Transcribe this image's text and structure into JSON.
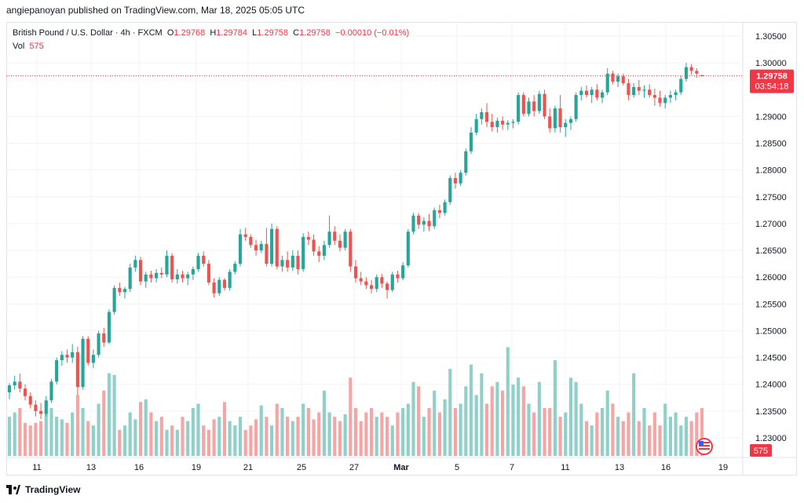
{
  "publisher_line": "angiepanoyan published on TradingView.com, Mar 18, 2025 05:05 UTC",
  "legend": {
    "symbol": "British Pound / U.S. Dollar · 4h · FXCM",
    "open_label": "O",
    "open": "1.29768",
    "high_label": "H",
    "high": "1.29784",
    "low_label": "L",
    "low": "1.29758",
    "close_label": "C",
    "close": "1.29758",
    "change": "−0.00010 (−0.01%)",
    "vol_label": "Vol",
    "vol": "575"
  },
  "price_badge": {
    "price": "1.29758",
    "countdown": "03:54:18"
  },
  "volume_badge": "575",
  "footer_brand": "TradingView",
  "colors": {
    "up": "#26a69a",
    "down": "#ef5350",
    "up_vol": "#8fd0c9",
    "down_vol": "#f4a5a4",
    "badge": "#f23645"
  },
  "chart_data": {
    "type": "candlestick",
    "y_ticks": [
      "1.30500",
      "1.30000",
      "1.29000",
      "1.28500",
      "1.28000",
      "1.27500",
      "1.27000",
      "1.26500",
      "1.26000",
      "1.25500",
      "1.25000",
      "1.24500",
      "1.24000",
      "1.23500",
      "1.23000"
    ],
    "x_ticks": [
      "11",
      "13",
      "16",
      "19",
      "21",
      "25",
      "27",
      "Mar",
      "5",
      "7",
      "11",
      "13",
      "16",
      "19"
    ],
    "ylim": [
      1.2265,
      1.3075
    ],
    "last_price": 1.29758,
    "candles": [
      [
        1.2385,
        1.2402,
        1.2372,
        1.2398
      ],
      [
        1.2398,
        1.2416,
        1.239,
        1.2405
      ],
      [
        1.2405,
        1.242,
        1.2385,
        1.2392
      ],
      [
        1.2392,
        1.24,
        1.237,
        1.2378
      ],
      [
        1.2378,
        1.2385,
        1.2355,
        1.2362
      ],
      [
        1.2362,
        1.237,
        1.234,
        1.235
      ],
      [
        1.235,
        1.2365,
        1.2335,
        1.2345
      ],
      [
        1.2345,
        1.2378,
        1.234,
        1.237
      ],
      [
        1.237,
        1.241,
        1.2365,
        1.2405
      ],
      [
        1.2405,
        1.245,
        1.24,
        1.2445
      ],
      [
        1.2445,
        1.2462,
        1.2435,
        1.2455
      ],
      [
        1.2455,
        1.2465,
        1.244,
        1.245
      ],
      [
        1.245,
        1.2475,
        1.244,
        1.246
      ],
      [
        1.246,
        1.247,
        1.238,
        1.2395
      ],
      [
        1.2395,
        1.249,
        1.239,
        1.2485
      ],
      [
        1.2485,
        1.249,
        1.2435,
        1.244
      ],
      [
        1.244,
        1.2465,
        1.243,
        1.2455
      ],
      [
        1.2455,
        1.25,
        1.245,
        1.2495
      ],
      [
        1.2495,
        1.2505,
        1.247,
        1.2478
      ],
      [
        1.2478,
        1.254,
        1.2475,
        1.2535
      ],
      [
        1.2535,
        1.2585,
        1.253,
        1.258
      ],
      [
        1.258,
        1.259,
        1.2565,
        1.2572
      ],
      [
        1.2572,
        1.2582,
        1.256,
        1.2578
      ],
      [
        1.2578,
        1.2625,
        1.2572,
        1.2618
      ],
      [
        1.2618,
        1.264,
        1.261,
        1.2632
      ],
      [
        1.2632,
        1.2638,
        1.2585,
        1.2592
      ],
      [
        1.2592,
        1.261,
        1.258,
        1.2605
      ],
      [
        1.2605,
        1.2612,
        1.259,
        1.2598
      ],
      [
        1.2598,
        1.2615,
        1.259,
        1.2608
      ],
      [
        1.2608,
        1.2618,
        1.2598,
        1.2605
      ],
      [
        1.2605,
        1.265,
        1.26,
        1.264
      ],
      [
        1.264,
        1.2645,
        1.259,
        1.2596
      ],
      [
        1.2596,
        1.2615,
        1.2588,
        1.2605
      ],
      [
        1.2605,
        1.2612,
        1.259,
        1.2598
      ],
      [
        1.2598,
        1.261,
        1.2585,
        1.2605
      ],
      [
        1.2605,
        1.262,
        1.2595,
        1.2615
      ],
      [
        1.2615,
        1.2645,
        1.261,
        1.264
      ],
      [
        1.264,
        1.2648,
        1.262,
        1.2625
      ],
      [
        1.2625,
        1.2632,
        1.2585,
        1.259
      ],
      [
        1.259,
        1.2598,
        1.2562,
        1.257
      ],
      [
        1.257,
        1.26,
        1.2565,
        1.2595
      ],
      [
        1.2595,
        1.2598,
        1.2575,
        1.258
      ],
      [
        1.258,
        1.2615,
        1.2575,
        1.261
      ],
      [
        1.261,
        1.263,
        1.2605,
        1.2625
      ],
      [
        1.2625,
        1.269,
        1.262,
        1.268
      ],
      [
        1.268,
        1.2692,
        1.2668,
        1.2675
      ],
      [
        1.2675,
        1.268,
        1.2655,
        1.266
      ],
      [
        1.266,
        1.267,
        1.264,
        1.265
      ],
      [
        1.265,
        1.2668,
        1.2645,
        1.2662
      ],
      [
        1.2662,
        1.2692,
        1.262,
        1.2625
      ],
      [
        1.2625,
        1.27,
        1.262,
        1.269
      ],
      [
        1.269,
        1.2695,
        1.2615,
        1.262
      ],
      [
        1.262,
        1.264,
        1.261,
        1.2632
      ],
      [
        1.2632,
        1.2648,
        1.261,
        1.2618
      ],
      [
        1.2618,
        1.265,
        1.2612,
        1.264
      ],
      [
        1.264,
        1.265,
        1.2605,
        1.2615
      ],
      [
        1.2615,
        1.2682,
        1.261,
        1.2675
      ],
      [
        1.2675,
        1.2685,
        1.266,
        1.267
      ],
      [
        1.267,
        1.268,
        1.264,
        1.2648
      ],
      [
        1.2648,
        1.2658,
        1.2628,
        1.264
      ],
      [
        1.264,
        1.2668,
        1.2632,
        1.266
      ],
      [
        1.266,
        1.2715,
        1.2655,
        1.2685
      ],
      [
        1.2685,
        1.2695,
        1.266,
        1.2668
      ],
      [
        1.2668,
        1.268,
        1.2648,
        1.2655
      ],
      [
        1.2655,
        1.269,
        1.265,
        1.2685
      ],
      [
        1.2685,
        1.269,
        1.261,
        1.262
      ],
      [
        1.262,
        1.2632,
        1.259,
        1.2598
      ],
      [
        1.2598,
        1.261,
        1.2585,
        1.2592
      ],
      [
        1.2592,
        1.26,
        1.2578,
        1.2585
      ],
      [
        1.2585,
        1.2595,
        1.257,
        1.2578
      ],
      [
        1.2578,
        1.2605,
        1.2572,
        1.26
      ],
      [
        1.26,
        1.2606,
        1.258,
        1.2588
      ],
      [
        1.2588,
        1.2592,
        1.256,
        1.2576
      ],
      [
        1.2576,
        1.261,
        1.2572,
        1.2605
      ],
      [
        1.2605,
        1.2612,
        1.259,
        1.2598
      ],
      [
        1.2598,
        1.2628,
        1.2594,
        1.2622
      ],
      [
        1.2622,
        1.269,
        1.2618,
        1.2685
      ],
      [
        1.2685,
        1.272,
        1.268,
        1.2715
      ],
      [
        1.2715,
        1.272,
        1.269,
        1.2698
      ],
      [
        1.2698,
        1.2712,
        1.2685,
        1.2705
      ],
      [
        1.2705,
        1.2718,
        1.2686,
        1.2695
      ],
      [
        1.2695,
        1.273,
        1.269,
        1.2725
      ],
      [
        1.2725,
        1.2735,
        1.271,
        1.272
      ],
      [
        1.272,
        1.2745,
        1.2715,
        1.274
      ],
      [
        1.274,
        1.279,
        1.2735,
        1.2785
      ],
      [
        1.2785,
        1.2795,
        1.2765,
        1.2775
      ],
      [
        1.2775,
        1.28,
        1.277,
        1.2795
      ],
      [
        1.2795,
        1.284,
        1.279,
        1.2835
      ],
      [
        1.2835,
        1.288,
        1.283,
        1.287
      ],
      [
        1.287,
        1.2905,
        1.2865,
        1.2895
      ],
      [
        1.2895,
        1.2915,
        1.2885,
        1.2908
      ],
      [
        1.2908,
        1.2925,
        1.288,
        1.289
      ],
      [
        1.289,
        1.2905,
        1.2872,
        1.288
      ],
      [
        1.288,
        1.2898,
        1.287,
        1.2892
      ],
      [
        1.2892,
        1.29,
        1.2875,
        1.2885
      ],
      [
        1.2885,
        1.2893,
        1.2875,
        1.2888
      ],
      [
        1.2888,
        1.2895,
        1.2878,
        1.289
      ],
      [
        1.289,
        1.2945,
        1.2885,
        1.294
      ],
      [
        1.294,
        1.2945,
        1.29,
        1.2905
      ],
      [
        1.2905,
        1.2935,
        1.29,
        1.2928
      ],
      [
        1.2928,
        1.294,
        1.29,
        1.291
      ],
      [
        1.291,
        1.2948,
        1.2905,
        1.2942
      ],
      [
        1.2942,
        1.295,
        1.2895,
        1.29
      ],
      [
        1.29,
        1.2915,
        1.287,
        1.2878
      ],
      [
        1.2878,
        1.292,
        1.287,
        1.2915
      ],
      [
        1.2915,
        1.294,
        1.287,
        1.288
      ],
      [
        1.288,
        1.2895,
        1.2862,
        1.2888
      ],
      [
        1.2888,
        1.29,
        1.2875,
        1.2895
      ],
      [
        1.2895,
        1.2945,
        1.289,
        1.294
      ],
      [
        1.294,
        1.2955,
        1.293,
        1.2948
      ],
      [
        1.2948,
        1.2958,
        1.2935,
        1.294
      ],
      [
        1.294,
        1.2955,
        1.2925,
        1.295
      ],
      [
        1.295,
        1.296,
        1.293,
        1.2935
      ],
      [
        1.2935,
        1.295,
        1.2925,
        1.2945
      ],
      [
        1.2945,
        1.299,
        1.294,
        1.298
      ],
      [
        1.298,
        1.2985,
        1.296,
        1.2965
      ],
      [
        1.2965,
        1.298,
        1.2955,
        1.2975
      ],
      [
        1.2975,
        1.298,
        1.2958,
        1.2962
      ],
      [
        1.2962,
        1.297,
        1.293,
        1.294
      ],
      [
        1.294,
        1.2962,
        1.2935,
        1.2955
      ],
      [
        1.2955,
        1.2968,
        1.294,
        1.2948
      ],
      [
        1.2948,
        1.2958,
        1.2935,
        1.295
      ],
      [
        1.295,
        1.296,
        1.2935,
        1.294
      ],
      [
        1.294,
        1.2952,
        1.292,
        1.2935
      ],
      [
        1.2935,
        1.2948,
        1.2918,
        1.2925
      ],
      [
        1.2925,
        1.294,
        1.2915,
        1.2935
      ],
      [
        1.2935,
        1.2948,
        1.2925,
        1.294
      ],
      [
        1.294,
        1.295,
        1.293,
        1.2945
      ],
      [
        1.2945,
        1.2975,
        1.294,
        1.297
      ],
      [
        1.297,
        1.3,
        1.2965,
        1.2992
      ],
      [
        1.2992,
        1.2998,
        1.2978,
        1.2985
      ],
      [
        1.2985,
        1.299,
        1.2972,
        1.298
      ],
      [
        1.29768,
        1.29784,
        1.29758,
        1.29758
      ]
    ],
    "volumes": [
      0.45,
      0.5,
      0.55,
      0.38,
      0.35,
      0.38,
      0.4,
      0.5,
      0.55,
      0.45,
      0.42,
      0.38,
      0.5,
      0.7,
      0.55,
      0.4,
      0.35,
      0.6,
      0.75,
      0.95,
      0.93,
      0.3,
      0.35,
      0.5,
      0.42,
      0.62,
      0.65,
      0.5,
      0.4,
      0.45,
      0.3,
      0.35,
      0.3,
      0.45,
      0.4,
      0.55,
      0.6,
      0.35,
      0.3,
      0.42,
      0.45,
      0.62,
      0.4,
      0.35,
      0.45,
      0.3,
      0.35,
      0.42,
      0.58,
      0.45,
      0.35,
      0.6,
      0.55,
      0.45,
      0.4,
      0.45,
      0.6,
      0.55,
      0.42,
      0.5,
      0.75,
      0.5,
      0.45,
      0.4,
      0.48,
      0.9,
      0.55,
      0.4,
      0.5,
      0.55,
      0.45,
      0.5,
      0.45,
      0.35,
      0.5,
      0.55,
      0.6,
      0.85,
      0.8,
      0.45,
      0.55,
      0.75,
      0.5,
      0.65,
      1.0,
      0.55,
      0.6,
      0.8,
      1.05,
      0.7,
      0.95,
      0.6,
      0.8,
      0.85,
      0.75,
      1.25,
      0.82,
      0.9,
      0.8,
      0.6,
      0.5,
      0.85,
      0.55,
      0.55,
      1.1,
      0.45,
      0.5,
      0.9,
      0.85,
      0.6,
      0.4,
      0.35,
      0.5,
      0.55,
      0.75,
      0.6,
      0.45,
      0.4,
      0.5,
      0.95,
      0.4,
      0.55,
      0.35,
      0.5,
      0.35,
      0.6,
      0.45,
      0.5,
      0.35,
      0.45,
      0.4,
      0.5,
      0.55,
      0.38,
      0.6,
      0.65,
      0.45,
      0.3,
      0.2
    ]
  }
}
